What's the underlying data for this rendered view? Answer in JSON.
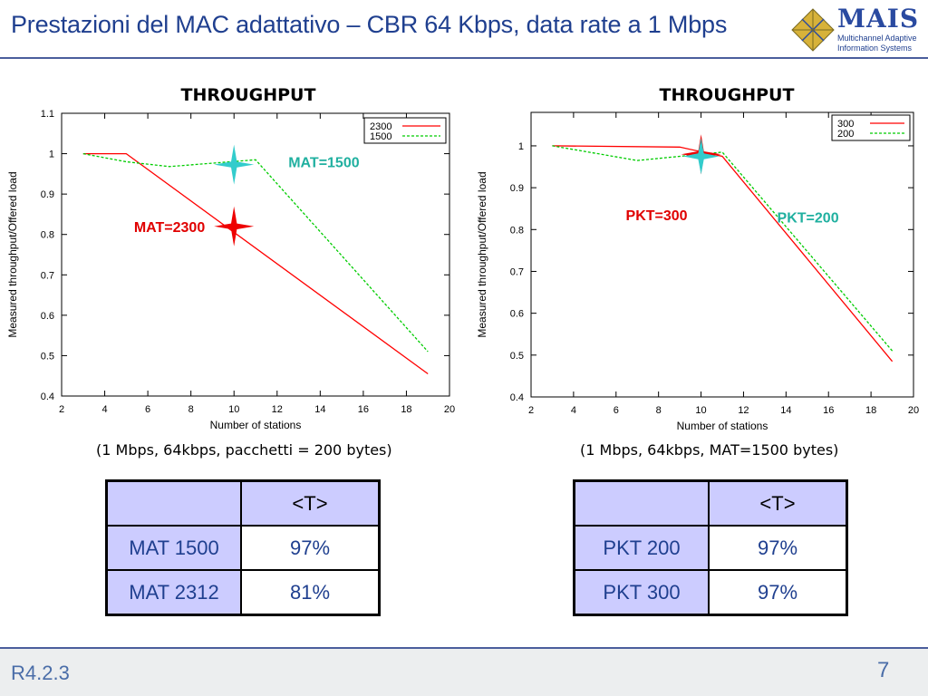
{
  "header": {
    "title": "Prestazioni del MAC adattativo – CBR 64 Kbps, data rate a 1 Mbps",
    "logo_name": "MAIS",
    "logo_line1": "Multichannel Adaptive",
    "logo_line2": "Information Systems"
  },
  "left": {
    "title": "THROUGHPUT",
    "caption": "(1 Mbps, 64kbps, pacchetti = 200 bytes)",
    "table": {
      "header": "<T>",
      "rows": [
        {
          "label": "MAT 1500",
          "value": "97%"
        },
        {
          "label": "MAT 2312",
          "value": "81%"
        }
      ]
    }
  },
  "right": {
    "title": "THROUGHPUT",
    "caption": "(1 Mbps, 64kbps, MAT=1500 bytes)",
    "table": {
      "header": "<T>",
      "rows": [
        {
          "label": "PKT 200",
          "value": "97%"
        },
        {
          "label": "PKT 300",
          "value": "97%"
        }
      ]
    }
  },
  "chart_data": [
    {
      "type": "line",
      "xlabel": "Number of stations",
      "ylabel": "Measured throughput/Offered load",
      "xlim": [
        2,
        20
      ],
      "ylim": [
        0.4,
        1.1
      ],
      "xticks": [
        2,
        4,
        6,
        8,
        10,
        12,
        14,
        16,
        18,
        20
      ],
      "yticks": [
        0.4,
        0.5,
        0.6,
        0.7,
        0.8,
        0.9,
        1,
        1.1
      ],
      "legend_position": "top-right",
      "grid": false,
      "series": [
        {
          "name": "2300",
          "color": "#ff0000",
          "dash": false,
          "x": [
            3,
            5,
            19
          ],
          "y": [
            1.0,
            1.0,
            0.455
          ]
        },
        {
          "name": "1500",
          "color": "#00cc00",
          "dash": true,
          "x": [
            3,
            5,
            7,
            11,
            19
          ],
          "y": [
            1.0,
            0.98,
            0.968,
            0.985,
            0.51
          ]
        }
      ],
      "annotations": [
        {
          "text": "MAT=1500",
          "color": "#20b0a0",
          "x": 10,
          "y": 0.973,
          "star_color": "#33cccc"
        },
        {
          "text": "MAT=2300",
          "color": "#e00000",
          "x": 10,
          "y": 0.82,
          "star_color": "#ee0000"
        }
      ]
    },
    {
      "type": "line",
      "xlabel": "Number of stations",
      "ylabel": "Measured throughput/Offered load",
      "xlim": [
        2,
        20
      ],
      "ylim": [
        0.4,
        1.08
      ],
      "xticks": [
        2,
        4,
        6,
        8,
        10,
        12,
        14,
        16,
        18,
        20
      ],
      "yticks": [
        0.4,
        0.5,
        0.6,
        0.7,
        0.8,
        0.9,
        1
      ],
      "legend_position": "top-right",
      "grid": false,
      "series": [
        {
          "name": "300",
          "color": "#ff0000",
          "dash": false,
          "x": [
            3,
            9,
            11,
            19
          ],
          "y": [
            1.0,
            0.997,
            0.975,
            0.485
          ]
        },
        {
          "name": "200",
          "color": "#00cc00",
          "dash": true,
          "x": [
            3,
            7,
            11,
            19
          ],
          "y": [
            1.0,
            0.965,
            0.985,
            0.51
          ]
        }
      ],
      "annotations": [
        {
          "text": "PKT=300",
          "color": "#e00000",
          "x": 10,
          "y": 0.98,
          "star_color": "#ee0000"
        },
        {
          "text": "PKT=200",
          "color": "#20b0a0",
          "x": 10,
          "y": 0.975,
          "star_color": "#33cccc"
        }
      ]
    }
  ],
  "footer": {
    "left": "R4.2.3",
    "right": "7"
  }
}
